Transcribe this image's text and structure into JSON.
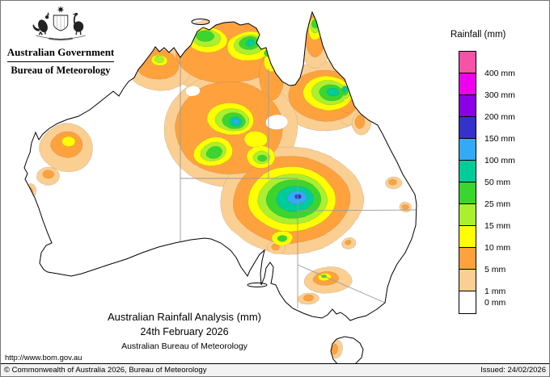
{
  "header": {
    "government": "Australian Government",
    "bureau": "Bureau of Meteorology"
  },
  "legend": {
    "title": "Rainfall (mm)",
    "entries": [
      {
        "label": "400 mm",
        "color": "#F653A6"
      },
      {
        "label": "300 mm",
        "color": "#EE00EE"
      },
      {
        "label": "200 mm",
        "color": "#8A00E6"
      },
      {
        "label": "150 mm",
        "color": "#3333CC"
      },
      {
        "label": "100 mm",
        "color": "#33AAF5"
      },
      {
        "label": "50 mm",
        "color": "#00CC99"
      },
      {
        "label": "25 mm",
        "color": "#3BD52F"
      },
      {
        "label": "15 mm",
        "color": "#AAF02D"
      },
      {
        "label": "10 mm",
        "color": "#FFFF00"
      },
      {
        "label": "5 mm",
        "color": "#FFA23C"
      },
      {
        "label": "1 mm",
        "color": "#FBCF92"
      },
      {
        "label": "0 mm",
        "color": "#FFFFFF"
      }
    ]
  },
  "caption": {
    "title": "Australian Rainfall Analysis (mm)",
    "date": "24th February 2026",
    "org": "Australian Bureau of Meteorology"
  },
  "footer": {
    "url": "http://www.bom.gov.au",
    "copyright": "© Commonwealth of Australia 2026, Bureau of Meteorology",
    "issued": "Issued: 24/02/2026"
  }
}
